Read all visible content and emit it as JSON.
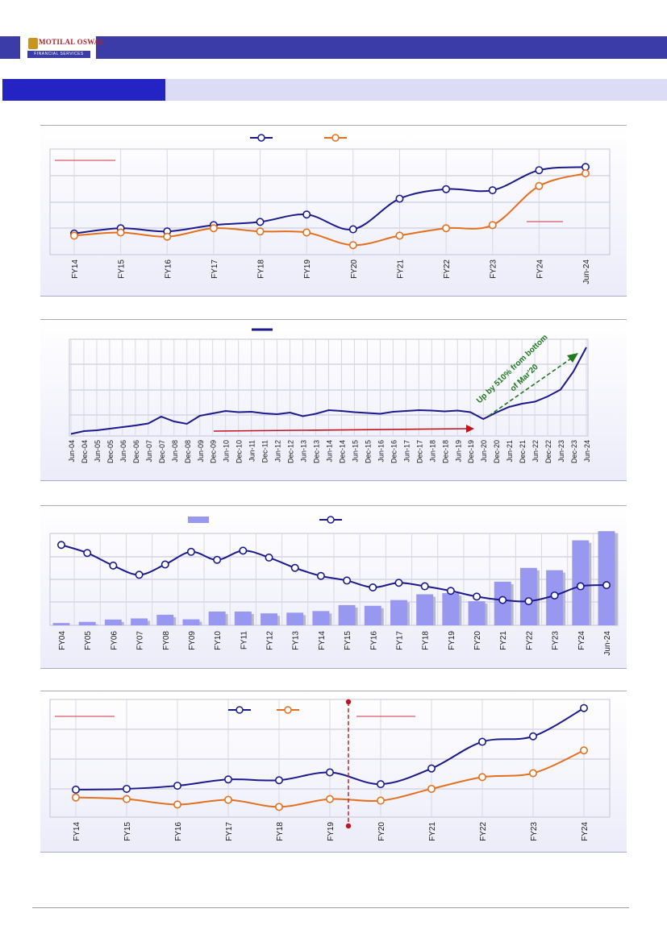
{
  "header": {
    "logo_name": "MOTILAL OSWAL",
    "logo_subtitle": "FINANCIAL SERVICES",
    "brand_color": "#3c3ca8",
    "section_color": "#2424c4"
  },
  "chart_data": [
    {
      "type": "line",
      "grid": true,
      "legend_position": "top-center",
      "categories": [
        "FY14",
        "FY15",
        "FY16",
        "FY17",
        "FY18",
        "FY19",
        "FY20",
        "FY21",
        "FY22",
        "FY23",
        "FY24",
        "Jun-24"
      ],
      "series": [
        {
          "color": "#1a1a8c",
          "values": [
            1.0,
            1.25,
            1.1,
            1.4,
            1.55,
            1.9,
            1.2,
            2.65,
            3.1,
            3.05,
            4.0,
            4.15
          ]
        },
        {
          "color": "#e2701e",
          "values": [
            0.9,
            1.05,
            0.85,
            1.25,
            1.1,
            1.05,
            0.45,
            0.9,
            1.25,
            1.4,
            3.25,
            3.85
          ]
        }
      ],
      "ylim": [
        0,
        5
      ]
    },
    {
      "type": "line",
      "grid": true,
      "legend_position": "top-center",
      "categories": [
        "Jun-04",
        "Dec-04",
        "Jun-05",
        "Dec-05",
        "Jun-06",
        "Dec-06",
        "Jun-07",
        "Dec-07",
        "Jun-08",
        "Dec-08",
        "Jun-09",
        "Dec-09",
        "Jun-10",
        "Dec-10",
        "Jun-11",
        "Dec-11",
        "Jun-12",
        "Dec-12",
        "Jun-13",
        "Dec-13",
        "Jun-14",
        "Dec-14",
        "Jun-15",
        "Dec-15",
        "Jun-16",
        "Dec-16",
        "Jun-17",
        "Dec-17",
        "Jun-18",
        "Dec-18",
        "Jun-19",
        "Dec-19",
        "Jun-20",
        "Dec-20",
        "Jun-21",
        "Dec-21",
        "Jun-22",
        "Dec-22",
        "Jun-23",
        "Dec-23",
        "Jun-24"
      ],
      "series": [
        {
          "color": "#1a1a8c",
          "values": [
            0.5,
            1.2,
            1.4,
            1.8,
            2.2,
            2.6,
            3.1,
            4.8,
            3.6,
            3.0,
            5.0,
            5.6,
            6.2,
            5.9,
            6.0,
            5.6,
            5.4,
            5.8,
            4.9,
            5.5,
            6.4,
            6.2,
            5.9,
            5.7,
            5.5,
            6.0,
            6.2,
            6.4,
            6.3,
            6.1,
            6.3,
            5.9,
            4.2,
            5.8,
            7.2,
            8.0,
            8.5,
            9.8,
            11.5,
            16.0,
            22.0
          ]
        }
      ],
      "annotation": "Up by 510% from bottom of Mar'20",
      "ylim": [
        0,
        24
      ]
    },
    {
      "type": "bar",
      "grid": true,
      "legend_position": "top-center",
      "categories": [
        "FY04",
        "FY05",
        "FY06",
        "FY07",
        "FY08",
        "FY09",
        "FY10",
        "FY11",
        "FY12",
        "FY13",
        "FY14",
        "FY15",
        "FY16",
        "FY17",
        "FY18",
        "FY19",
        "FY20",
        "FY21",
        "FY22",
        "FY23",
        "FY24",
        "Jun-24"
      ],
      "series": [
        {
          "type": "bar",
          "color": "#9898f0",
          "values": [
            1.0,
            1.5,
            2.5,
            3.0,
            4.6,
            2.6,
            6.0,
            6.0,
            5.2,
            5.5,
            6.2,
            8.8,
            8.5,
            11.0,
            13.5,
            14.0,
            10.5,
            19.0,
            25.0,
            24.0,
            37.0,
            41.0
          ]
        },
        {
          "type": "line",
          "color": "#1a1a8c",
          "values": [
            35.0,
            31.5,
            26.0,
            22.0,
            26.5,
            32.0,
            28.5,
            32.5,
            29.5,
            25.0,
            21.5,
            19.5,
            16.5,
            18.5,
            17.0,
            15.0,
            12.5,
            11.0,
            10.5,
            13.0,
            17.0,
            17.5
          ]
        }
      ],
      "ylim": [
        0,
        40
      ]
    },
    {
      "type": "line",
      "grid": true,
      "legend_position": "top-center",
      "categories": [
        "FY14",
        "FY15",
        "FY16",
        "FY17",
        "FY18",
        "FY19",
        "FY20",
        "FY21",
        "FY22",
        "FY23",
        "FY24"
      ],
      "series": [
        {
          "color": "#1a1a8c",
          "values": [
            1.25,
            1.3,
            1.5,
            1.9,
            1.85,
            2.35,
            1.6,
            2.6,
            4.3,
            4.65,
            6.45
          ]
        },
        {
          "color": "#e2701e",
          "values": [
            0.75,
            0.65,
            0.3,
            0.6,
            0.15,
            0.65,
            0.55,
            1.3,
            2.05,
            2.3,
            3.75
          ]
        }
      ],
      "ylim": [
        -0.5,
        7
      ]
    }
  ]
}
